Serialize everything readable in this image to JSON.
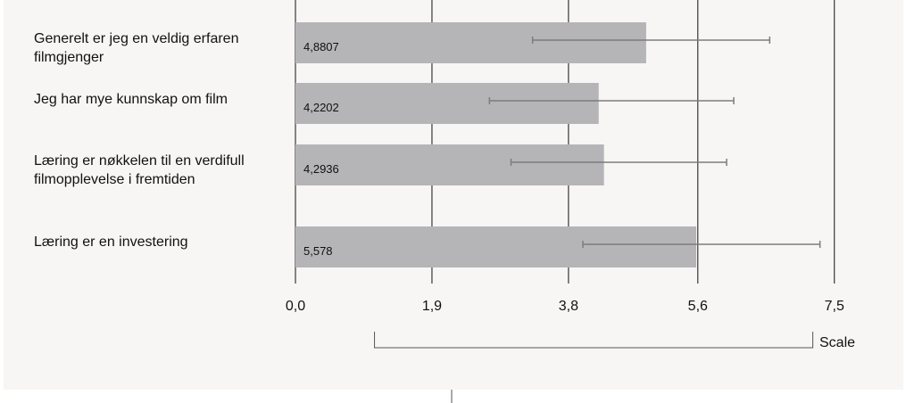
{
  "chart_data": {
    "type": "bar",
    "orientation": "horizontal",
    "categories": [
      "Generelt er jeg en veldig erfaren filmgjenger",
      "Jeg har mye kunnskap om film",
      "Læring er nøkkelen til en verdifull filmopplevelse i fremtiden",
      "Læring er en investering"
    ],
    "values": [
      4.8807,
      4.2202,
      4.2936,
      5.578
    ],
    "value_labels": [
      "4,8807",
      "4,2202",
      "4,2936",
      "5,578"
    ],
    "error_bars": [
      {
        "low": 3.3,
        "high": 6.6
      },
      {
        "low": 2.7,
        "high": 6.1
      },
      {
        "low": 3.0,
        "high": 6.0
      },
      {
        "low": 4.0,
        "high": 7.3
      }
    ],
    "xlim": [
      0,
      7.5
    ],
    "x_ticks": [
      0,
      1.9,
      3.8,
      5.6,
      7.5
    ],
    "x_tick_labels": [
      "0,0",
      "1,9",
      "3,8",
      "5,6",
      "7,5"
    ],
    "scale_bracket": [
      1.1,
      7.2
    ],
    "scale_label": "Scale",
    "grid": true,
    "colors": {
      "bar": "#b5b5b8",
      "error_bar": "#7d7d7d",
      "grid": "#111111",
      "panel_bg": "#f7f6f4",
      "text": "#111111"
    }
  }
}
